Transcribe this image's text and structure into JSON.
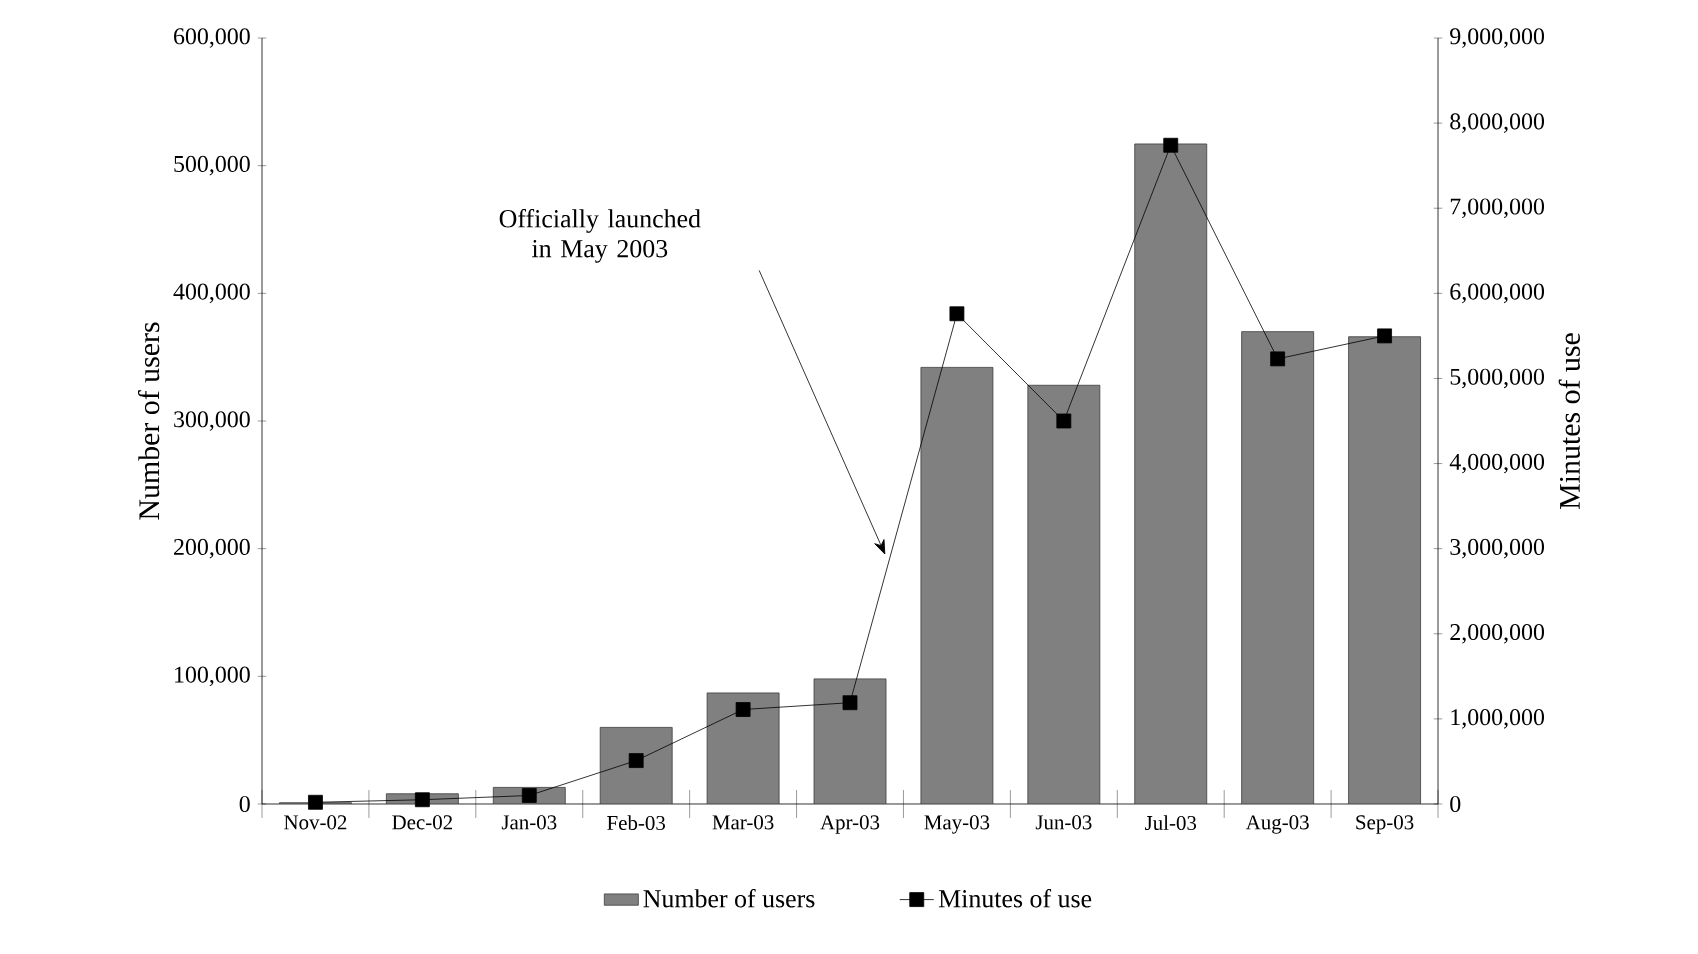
{
  "chart_data": {
    "type": "bar",
    "xlabel": null,
    "ylabel": "Number of users",
    "y2label": "Minutes of use",
    "categories": [
      "Nov-02",
      "Dec-02",
      "Jan-03",
      "Feb-03",
      "Mar-03",
      "Apr-03",
      "May-03",
      "Jun-03",
      "Jul-03",
      "Aug-03",
      "Sep-03"
    ],
    "series": [
      {
        "name": "Number of users",
        "color": "#808080",
        "values": [
          1000,
          8000,
          13000,
          60000,
          87000,
          98000,
          342000,
          328000,
          517000,
          370000,
          366000
        ]
      },
      {
        "name": "Minutes of use",
        "type": "line",
        "axis": "y2",
        "color": "#000000",
        "values": [
          20000,
          50000,
          100000,
          510000,
          1110000,
          1190000,
          5760000,
          4500000,
          7740000,
          5230000,
          5500000
        ]
      }
    ],
    "ylim": [
      0,
      600000
    ],
    "yticks": [
      0,
      {
        "value": 100000,
        "label": "100,000"
      },
      {
        "value": 200000,
        "label": "200,000"
      },
      {
        "value": 300000,
        "label": "300,000"
      },
      {
        "value": 400000,
        "label": "400,000"
      },
      {
        "value": 500000,
        "label": "500,000"
      },
      {
        "value": 600000,
        "label": "600,000"
      }
    ],
    "y2lim": [
      0,
      9000000
    ],
    "y2ticks": [
      0,
      {
        "value": 1000000,
        "label": "1,000,000"
      },
      {
        "value": 2000000,
        "label": "2,000,000"
      },
      {
        "value": 3000000,
        "label": "3,000,000"
      },
      {
        "value": 4000000,
        "label": "4,000,000"
      },
      {
        "value": 5000000,
        "label": "5,000,000"
      },
      {
        "value": 6000000,
        "label": "6,000,000"
      },
      {
        "value": 7000000,
        "label": "7,000,000"
      },
      {
        "value": 8000000,
        "label": "8,000,000"
      },
      {
        "value": 9000000,
        "label": "9,000,000"
      }
    ],
    "marker": "square",
    "line_style": "solid",
    "grid": false,
    "legend": "bottom",
    "annotations": [
      "Officially launched in May 2003"
    ]
  }
}
